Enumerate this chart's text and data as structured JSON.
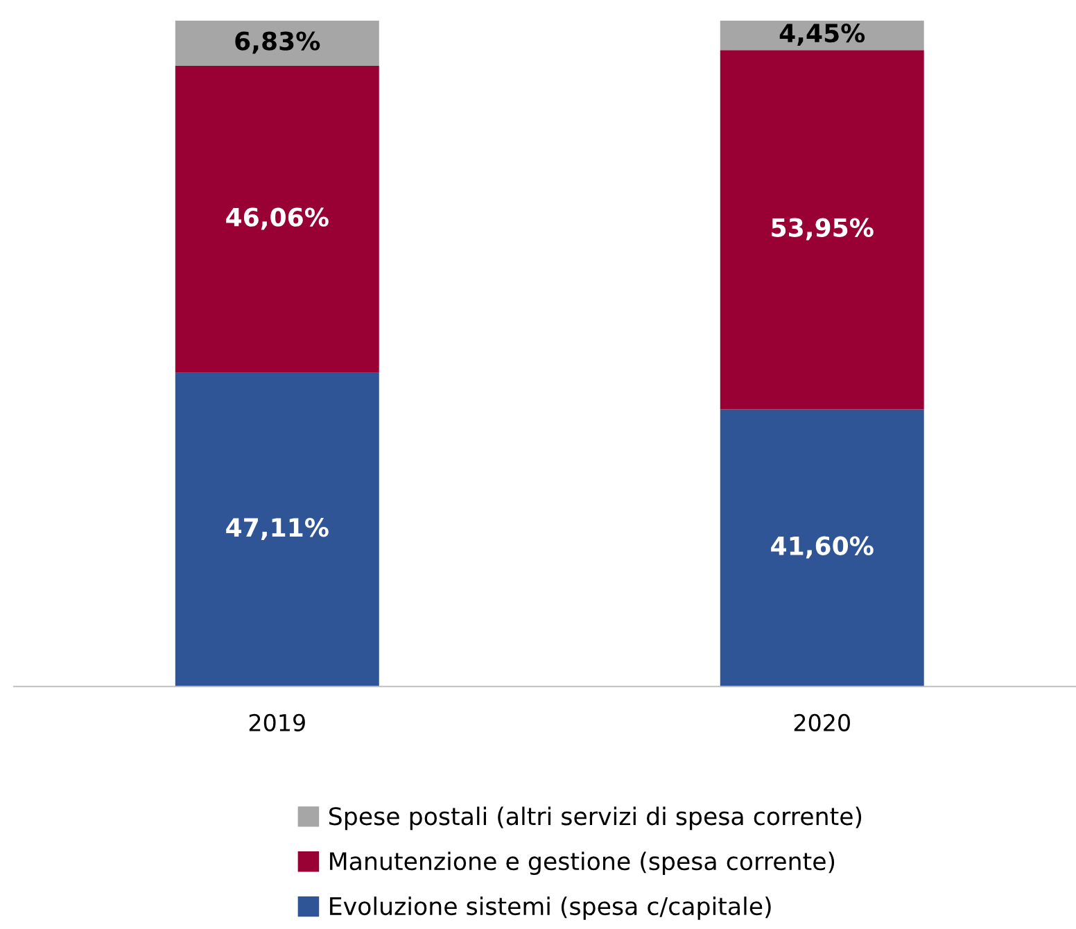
{
  "chart_data": {
    "type": "bar",
    "stacked": true,
    "categories": [
      "2019",
      "2020"
    ],
    "ylim": [
      0,
      100
    ],
    "tick_labels": "x",
    "legend": "bottom",
    "grid": false,
    "series": [
      {
        "name": "Evoluzione sistemi (spesa c/capitale)",
        "color": "#2f5597",
        "values": [
          47.11,
          41.6
        ],
        "value_labels": [
          "47,11%",
          "41,60%"
        ]
      },
      {
        "name": "Manutenzione e gestione (spesa corrente)",
        "color": "#990033",
        "values": [
          46.06,
          53.95
        ],
        "value_labels": [
          "46,06%",
          "53,95%"
        ]
      },
      {
        "name": "Spese postali (altri servizi di spesa corrente)",
        "color": "#a6a6a6",
        "values": [
          6.83,
          4.45
        ],
        "value_labels": [
          "6,83%",
          "4,45%"
        ]
      }
    ]
  }
}
